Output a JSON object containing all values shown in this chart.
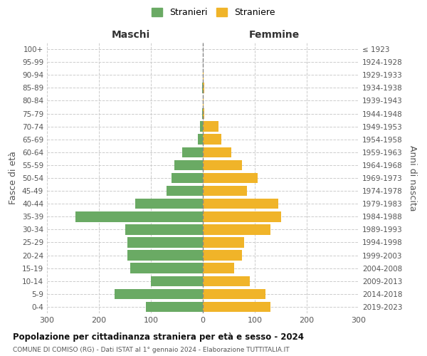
{
  "age_groups": [
    "0-4",
    "5-9",
    "10-14",
    "15-19",
    "20-24",
    "25-29",
    "30-34",
    "35-39",
    "40-44",
    "45-49",
    "50-54",
    "55-59",
    "60-64",
    "65-69",
    "70-74",
    "75-79",
    "80-84",
    "85-89",
    "90-94",
    "95-99",
    "100+"
  ],
  "birth_years": [
    "2019-2023",
    "2014-2018",
    "2009-2013",
    "2004-2008",
    "1999-2003",
    "1994-1998",
    "1989-1993",
    "1984-1988",
    "1979-1983",
    "1974-1978",
    "1969-1973",
    "1964-1968",
    "1959-1963",
    "1954-1958",
    "1949-1953",
    "1944-1948",
    "1939-1943",
    "1934-1938",
    "1929-1933",
    "1924-1928",
    "≤ 1923"
  ],
  "maschi": [
    110,
    170,
    100,
    140,
    145,
    145,
    150,
    245,
    130,
    70,
    60,
    55,
    40,
    10,
    5,
    1,
    0,
    1,
    0,
    0,
    0
  ],
  "femmine": [
    130,
    120,
    90,
    60,
    75,
    80,
    130,
    150,
    145,
    85,
    105,
    75,
    55,
    35,
    30,
    3,
    2,
    3,
    2,
    0,
    0
  ],
  "male_color": "#6aaa64",
  "female_color": "#f0b429",
  "grid_color": "#cccccc",
  "center_line_color": "#888888",
  "title": "Popolazione per cittadinanza straniera per età e sesso - 2024",
  "subtitle": "COMUNE DI COMISO (RG) - Dati ISTAT al 1° gennaio 2024 - Elaborazione TUTTITALIA.IT",
  "xlabel_left": "Maschi",
  "xlabel_right": "Femmine",
  "ylabel_left": "Fasce di età",
  "ylabel_right": "Anni di nascita",
  "legend_male": "Stranieri",
  "legend_female": "Straniere",
  "xlim": 300,
  "background_color": "#ffffff"
}
